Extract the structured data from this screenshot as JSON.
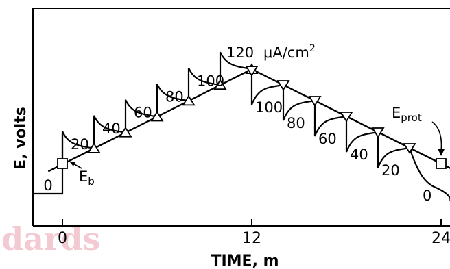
{
  "chart_data": {
    "type": "line",
    "xlabel": "TIME, m",
    "ylabel": "E, volts",
    "x_ticks": [
      0,
      12,
      24
    ],
    "xlim": [
      -1.9,
      24.6
    ],
    "upward_series": [
      {
        "label": "0",
        "x0": -1.9,
        "x1": 0
      },
      {
        "label": "20",
        "x0": 0,
        "x1": 2
      },
      {
        "label": "40",
        "x0": 2,
        "x1": 4
      },
      {
        "label": "60",
        "x0": 4,
        "x1": 6
      },
      {
        "label": "80",
        "x0": 6,
        "x1": 8
      },
      {
        "label": "100",
        "x0": 8,
        "x1": 10
      },
      {
        "label": "120",
        "x0": 10,
        "x1": 12
      }
    ],
    "downward_series": [
      {
        "label": "100",
        "x0": 12,
        "x1": 14
      },
      {
        "label": "80",
        "x0": 14,
        "x1": 16
      },
      {
        "label": "60",
        "x0": 16,
        "x1": 18
      },
      {
        "label": "40",
        "x0": 18,
        "x1": 20
      },
      {
        "label": "20",
        "x0": 20,
        "x1": 22
      },
      {
        "label": "0",
        "x0": 22,
        "x1": 24.6
      }
    ],
    "unit_label": "μA/cm",
    "unit_superscript": "2",
    "annotations": {
      "breakdown": {
        "main": "E",
        "sub": "b"
      },
      "protection": {
        "main": "E",
        "sub": "prot"
      }
    }
  },
  "watermark": "dards"
}
